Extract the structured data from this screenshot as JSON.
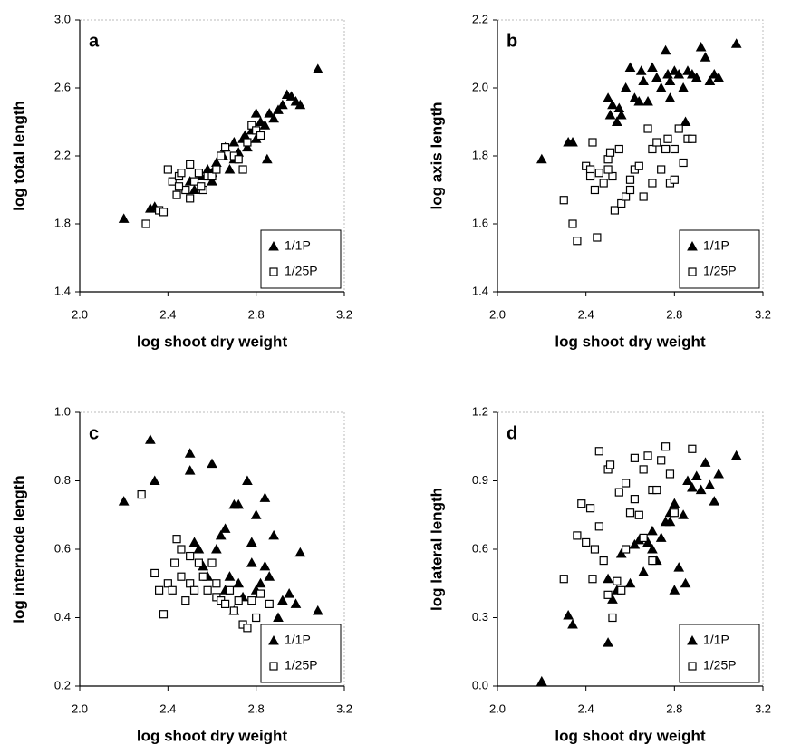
{
  "chart_data": [
    {
      "type": "scatter",
      "panel_label": "a",
      "x_label": "log shoot dry weight",
      "y_label": "log total length",
      "xlim": [
        2.0,
        3.2
      ],
      "xticks": [
        {
          "value": 2.0,
          "label": "2.0"
        },
        2.4,
        2.8,
        3.2
      ],
      "ylim": [
        1.4,
        3.0
      ],
      "yticks": [
        1.4,
        1.8,
        2.2,
        2.6,
        {
          "value": 3.0,
          "label": "3.0"
        }
      ],
      "legend": "lower right",
      "series": [
        {
          "name": "1/1P",
          "color": "#000000",
          "marker": "triangle-filled",
          "x": [
            2.2,
            2.32,
            2.34,
            2.5,
            2.55,
            2.6,
            2.62,
            2.65,
            2.66,
            2.7,
            2.72,
            2.74,
            2.76,
            2.78,
            2.8,
            2.82,
            2.84,
            2.85,
            2.86,
            2.88,
            2.9,
            2.92,
            2.94,
            2.96,
            2.98,
            3.0,
            2.7,
            2.68,
            2.6,
            2.75,
            3.08,
            2.52,
            2.58,
            2.8
          ],
          "values": [
            1.83,
            1.89,
            1.9,
            2.05,
            2.08,
            2.1,
            2.16,
            2.2,
            2.25,
            2.28,
            2.22,
            2.3,
            2.25,
            2.35,
            2.3,
            2.4,
            2.38,
            2.18,
            2.45,
            2.42,
            2.47,
            2.5,
            2.56,
            2.55,
            2.52,
            2.5,
            2.18,
            2.12,
            2.05,
            2.32,
            2.71,
            2.0,
            2.12,
            2.45
          ]
        },
        {
          "name": "1/25P",
          "color": "#000000",
          "marker": "square-open",
          "x": [
            2.3,
            2.36,
            2.38,
            2.4,
            2.42,
            2.44,
            2.45,
            2.46,
            2.48,
            2.5,
            2.5,
            2.52,
            2.54,
            2.56,
            2.58,
            2.6,
            2.62,
            2.64,
            2.66,
            2.7,
            2.72,
            2.74,
            2.76,
            2.78,
            2.8,
            2.82,
            2.45,
            2.55
          ],
          "values": [
            1.8,
            1.88,
            1.87,
            2.12,
            2.05,
            1.97,
            2.08,
            2.1,
            2.0,
            2.15,
            1.95,
            2.05,
            2.1,
            2.0,
            2.08,
            2.08,
            2.12,
            2.2,
            2.25,
            2.2,
            2.18,
            2.12,
            2.28,
            2.38,
            2.35,
            2.32,
            2.02,
            2.02
          ]
        }
      ]
    },
    {
      "type": "scatter",
      "panel_label": "b",
      "x_label": "log shoot dry weight",
      "y_label": "log axis length",
      "xlim": [
        2.0,
        3.2
      ],
      "xticks": [
        {
          "value": 2.0,
          "label": "2.0"
        },
        2.4,
        2.8,
        3.2
      ],
      "ylim": [
        1.4,
        2.2
      ],
      "yticks": [
        1.4,
        1.6,
        1.8,
        {
          "value": 2.0,
          "label": "2.0"
        },
        2.2
      ],
      "legend": "lower right",
      "series": [
        {
          "name": "1/1P",
          "color": "#000000",
          "marker": "triangle-filled",
          "x": [
            2.2,
            2.32,
            2.34,
            2.5,
            2.51,
            2.52,
            2.54,
            2.56,
            2.58,
            2.6,
            2.62,
            2.64,
            2.65,
            2.66,
            2.68,
            2.7,
            2.72,
            2.74,
            2.76,
            2.77,
            2.78,
            2.8,
            2.82,
            2.84,
            2.85,
            2.86,
            2.88,
            2.9,
            2.92,
            2.94,
            2.96,
            2.98,
            3.0,
            3.08,
            2.78,
            2.55
          ],
          "values": [
            1.79,
            1.84,
            1.84,
            1.97,
            1.92,
            1.95,
            1.9,
            1.92,
            2.0,
            2.06,
            1.97,
            1.96,
            2.05,
            2.02,
            1.96,
            2.06,
            2.03,
            2.0,
            2.11,
            2.04,
            2.02,
            2.05,
            2.04,
            2.0,
            1.9,
            2.05,
            2.04,
            2.03,
            2.12,
            2.09,
            2.02,
            2.04,
            2.03,
            2.13,
            1.97,
            1.94
          ]
        },
        {
          "name": "1/25P",
          "color": "#000000",
          "marker": "square-open",
          "x": [
            2.3,
            2.34,
            2.36,
            2.4,
            2.42,
            2.43,
            2.44,
            2.45,
            2.46,
            2.48,
            2.5,
            2.51,
            2.52,
            2.53,
            2.55,
            2.56,
            2.58,
            2.6,
            2.6,
            2.62,
            2.64,
            2.66,
            2.68,
            2.7,
            2.7,
            2.72,
            2.74,
            2.76,
            2.77,
            2.78,
            2.8,
            2.8,
            2.82,
            2.84,
            2.86,
            2.88,
            2.5,
            2.42
          ],
          "values": [
            1.67,
            1.6,
            1.55,
            1.77,
            1.76,
            1.84,
            1.7,
            1.56,
            1.75,
            1.72,
            1.79,
            1.81,
            1.74,
            1.64,
            1.82,
            1.66,
            1.68,
            1.73,
            1.7,
            1.76,
            1.77,
            1.68,
            1.88,
            1.72,
            1.82,
            1.84,
            1.76,
            1.82,
            1.85,
            1.72,
            1.73,
            1.82,
            1.88,
            1.78,
            1.85,
            1.85,
            1.76,
            1.74
          ]
        }
      ]
    },
    {
      "type": "scatter",
      "panel_label": "c",
      "x_label": "log shoot dry weight",
      "y_label": "log internode length",
      "xlim": [
        2.0,
        3.2
      ],
      "xticks": [
        {
          "value": 2.0,
          "label": "2.0"
        },
        2.4,
        2.8,
        3.2
      ],
      "ylim": [
        0.2,
        1.0
      ],
      "yticks": [
        0.2,
        0.4,
        0.6,
        0.8,
        {
          "value": 1.0,
          "label": "1.0"
        }
      ],
      "legend": "lower right",
      "series": [
        {
          "name": "1/1P",
          "color": "#000000",
          "marker": "triangle-filled",
          "x": [
            2.2,
            2.32,
            2.34,
            2.5,
            2.5,
            2.52,
            2.54,
            2.56,
            2.58,
            2.6,
            2.62,
            2.64,
            2.66,
            2.68,
            2.7,
            2.72,
            2.72,
            2.74,
            2.76,
            2.78,
            2.78,
            2.8,
            2.8,
            2.82,
            2.84,
            2.84,
            2.86,
            2.88,
            2.9,
            2.92,
            2.95,
            2.98,
            3.0,
            3.08,
            2.7,
            2.66
          ],
          "values": [
            0.74,
            0.92,
            0.8,
            0.88,
            0.83,
            0.62,
            0.6,
            0.55,
            0.52,
            0.85,
            0.6,
            0.64,
            0.66,
            0.52,
            0.73,
            0.73,
            0.5,
            0.46,
            0.8,
            0.62,
            0.56,
            0.7,
            0.48,
            0.5,
            0.75,
            0.55,
            0.52,
            0.64,
            0.4,
            0.45,
            0.47,
            0.44,
            0.59,
            0.42,
            0.42,
            0.48
          ]
        },
        {
          "name": "1/25P",
          "color": "#000000",
          "marker": "square-open",
          "x": [
            2.28,
            2.34,
            2.36,
            2.38,
            2.4,
            2.42,
            2.43,
            2.44,
            2.46,
            2.48,
            2.5,
            2.5,
            2.52,
            2.54,
            2.56,
            2.58,
            2.6,
            2.62,
            2.64,
            2.66,
            2.68,
            2.7,
            2.72,
            2.74,
            2.76,
            2.78,
            2.8,
            2.82,
            2.84,
            2.86,
            2.62,
            2.46
          ],
          "values": [
            0.76,
            0.53,
            0.48,
            0.41,
            0.5,
            0.48,
            0.56,
            0.63,
            0.52,
            0.45,
            0.58,
            0.5,
            0.48,
            0.56,
            0.52,
            0.48,
            0.56,
            0.46,
            0.45,
            0.44,
            0.48,
            0.42,
            0.45,
            0.38,
            0.37,
            0.45,
            0.4,
            0.47,
            0.36,
            0.44,
            0.5,
            0.6
          ]
        }
      ]
    },
    {
      "type": "scatter",
      "panel_label": "d",
      "x_label": "log shoot dry weight",
      "y_label": "log lateral length",
      "xlim": [
        2.0,
        3.2
      ],
      "xticks": [
        {
          "value": 2.0,
          "label": "2.0"
        },
        2.4,
        2.8,
        3.2
      ],
      "ylim": [
        0.0,
        1.2
      ],
      "yticks": [
        {
          "value": 0.0,
          "label": "0.0"
        },
        0.3,
        0.6,
        0.9,
        1.2
      ],
      "legend": "lower right",
      "series": [
        {
          "name": "1/1P",
          "color": "#000000",
          "marker": "triangle-filled",
          "x": [
            2.2,
            2.32,
            2.34,
            2.5,
            2.5,
            2.52,
            2.54,
            2.56,
            2.6,
            2.62,
            2.64,
            2.66,
            2.68,
            2.7,
            2.72,
            2.74,
            2.76,
            2.78,
            2.8,
            2.8,
            2.82,
            2.84,
            2.85,
            2.86,
            2.88,
            2.9,
            2.92,
            2.94,
            2.96,
            2.98,
            3.0,
            3.08,
            2.78,
            2.7
          ],
          "values": [
            0.02,
            0.31,
            0.27,
            0.19,
            0.47,
            0.38,
            0.42,
            0.58,
            0.45,
            0.62,
            0.64,
            0.5,
            0.63,
            0.6,
            0.55,
            0.65,
            0.72,
            0.76,
            0.8,
            0.42,
            0.52,
            0.75,
            0.45,
            0.9,
            0.87,
            0.92,
            0.86,
            0.98,
            0.88,
            0.81,
            0.93,
            1.01,
            0.72,
            0.68
          ]
        },
        {
          "name": "1/25P",
          "color": "#000000",
          "marker": "square-open",
          "x": [
            2.3,
            2.36,
            2.38,
            2.4,
            2.42,
            2.43,
            2.44,
            2.46,
            2.46,
            2.48,
            2.5,
            2.5,
            2.51,
            2.52,
            2.54,
            2.55,
            2.56,
            2.58,
            2.6,
            2.62,
            2.62,
            2.64,
            2.66,
            2.68,
            2.7,
            2.7,
            2.72,
            2.74,
            2.76,
            2.78,
            2.8,
            2.88,
            2.66,
            2.58
          ],
          "values": [
            0.47,
            0.66,
            0.8,
            0.63,
            0.78,
            0.47,
            0.6,
            0.7,
            1.03,
            0.55,
            0.4,
            0.95,
            0.97,
            0.3,
            0.46,
            0.85,
            0.42,
            0.89,
            0.76,
            0.82,
            1.0,
            0.75,
            0.95,
            1.01,
            0.86,
            0.55,
            0.86,
            0.99,
            1.05,
            0.93,
            0.76,
            1.04,
            0.65,
            0.6
          ]
        }
      ]
    }
  ]
}
